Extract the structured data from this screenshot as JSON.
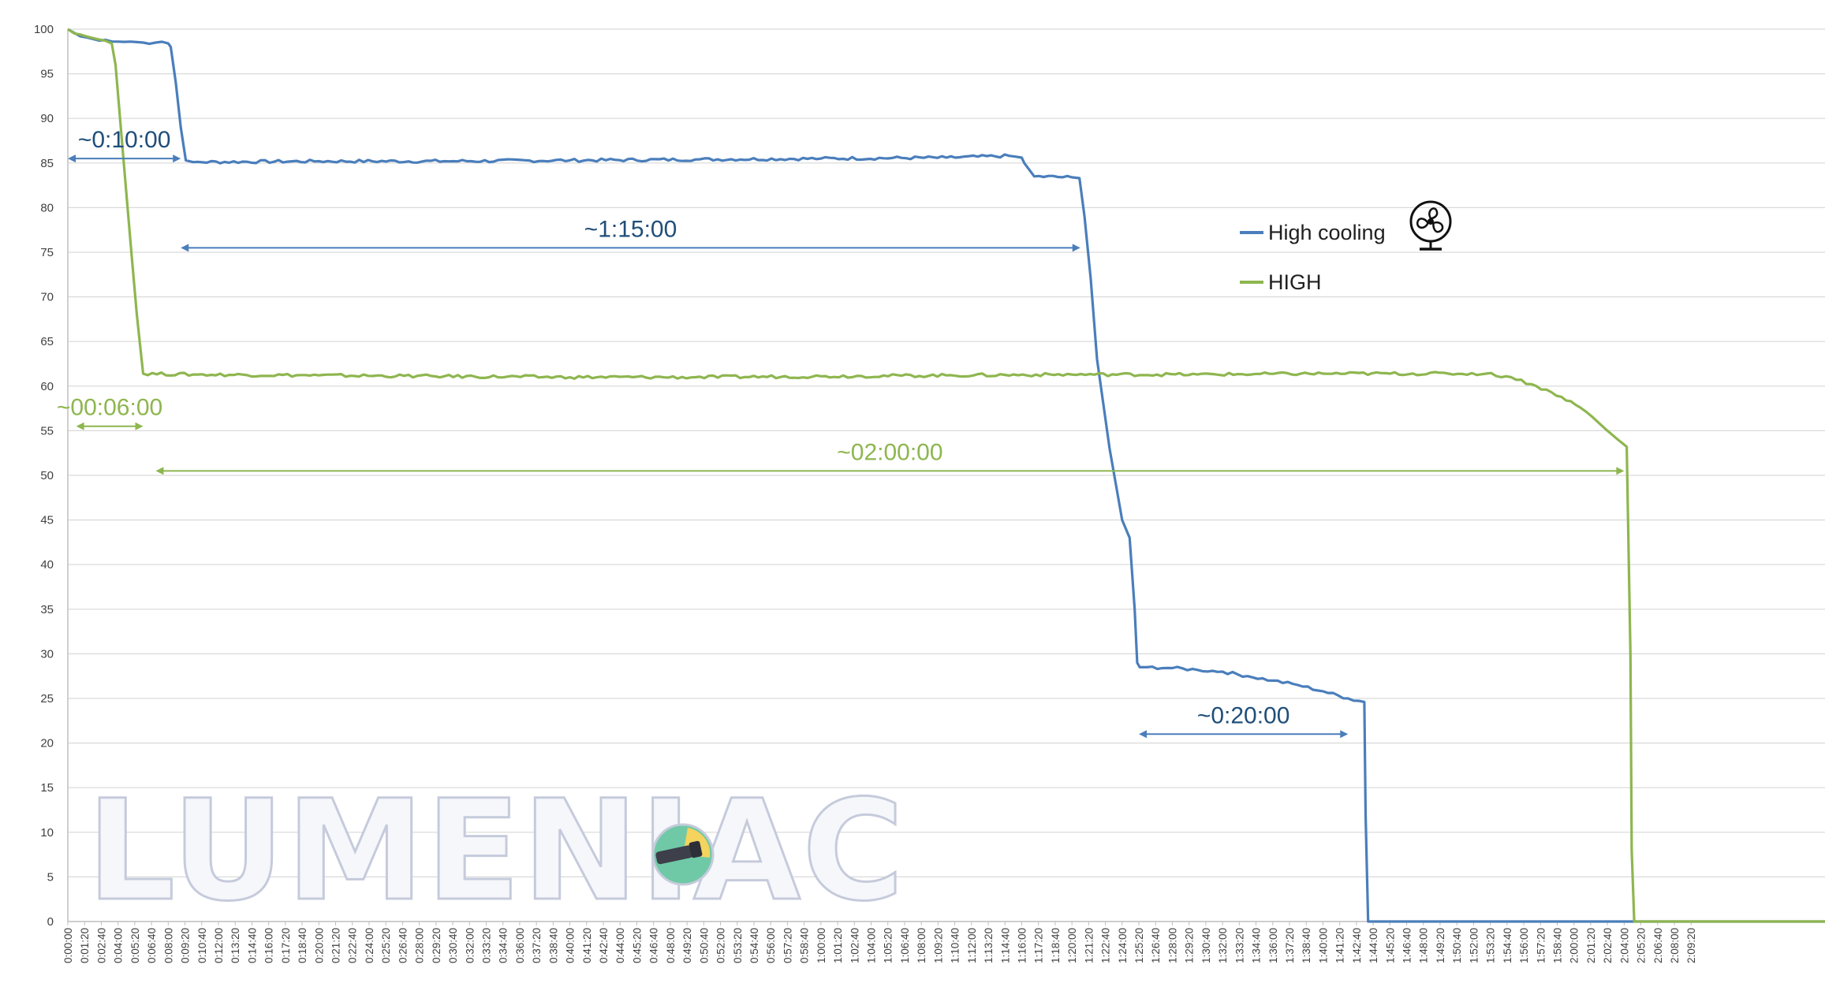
{
  "colors": {
    "high_cooling": "#4a7ebb",
    "high": "#8eb64f",
    "grid": "#d9d9d9",
    "axis": "#bfbfbf"
  },
  "watermark": {
    "text": "LUMENIAC",
    "icon": "flashlight-logo-icon"
  },
  "legend": {
    "items": [
      {
        "label": "High cooling",
        "color": "#4a7ebb",
        "icon": "fan-icon"
      },
      {
        "label": "HIGH",
        "color": "#8eb64f"
      }
    ]
  },
  "annotations": [
    {
      "text": "~0:10:00",
      "series": "High cooling",
      "x_from": "0:00:00",
      "x_to": "0:09:00",
      "y": 85.5
    },
    {
      "text": "~1:15:00",
      "series": "High cooling",
      "x_from": "0:09:00",
      "x_to": "1:20:40",
      "y": 75.5
    },
    {
      "text": "~00:06:00",
      "series": "HIGH",
      "x_from": "0:00:40",
      "x_to": "0:06:00",
      "y": 55.5
    },
    {
      "text": "~02:00:00",
      "series": "HIGH",
      "x_from": "0:07:00",
      "x_to": "2:04:00",
      "y": 50.5
    },
    {
      "text": "~0:20:00",
      "series": "High cooling",
      "x_from": "1:25:20",
      "x_to": "1:42:00",
      "y": 21
    }
  ],
  "chart_data": {
    "type": "line",
    "title": "",
    "xlabel": "",
    "ylabel": "",
    "ylim": [
      0,
      100
    ],
    "yticks": [
      0,
      5,
      10,
      15,
      20,
      25,
      30,
      35,
      40,
      45,
      50,
      55,
      60,
      65,
      70,
      75,
      80,
      85,
      90,
      95,
      100
    ],
    "xlim_minutes": [
      0,
      140
    ],
    "xtick_labels": [
      "0:00:00",
      "0:01:20",
      "0:02:40",
      "0:04:00",
      "0:05:20",
      "0:06:40",
      "0:08:00",
      "0:09:20",
      "0:10:40",
      "0:12:00",
      "0:13:20",
      "0:14:40",
      "0:16:00",
      "0:17:20",
      "0:18:40",
      "0:20:00",
      "0:21:20",
      "0:22:40",
      "0:24:00",
      "0:25:20",
      "0:26:40",
      "0:28:00",
      "0:29:20",
      "0:30:40",
      "0:32:00",
      "0:33:20",
      "0:34:40",
      "0:36:00",
      "0:37:20",
      "0:38:40",
      "0:40:00",
      "0:41:20",
      "0:42:40",
      "0:44:00",
      "0:45:20",
      "0:46:40",
      "0:48:00",
      "0:49:20",
      "0:50:40",
      "0:52:00",
      "0:53:20",
      "0:54:40",
      "0:56:00",
      "0:57:20",
      "0:58:40",
      "1:00:00",
      "1:01:20",
      "1:02:40",
      "1:04:00",
      "1:05:20",
      "1:06:40",
      "1:08:00",
      "1:09:20",
      "1:10:40",
      "1:12:00",
      "1:13:20",
      "1:14:40",
      "1:16:00",
      "1:17:20",
      "1:18:40",
      "1:20:00",
      "1:21:20",
      "1:22:40",
      "1:24:00",
      "1:25:20",
      "1:26:40",
      "1:28:00",
      "1:29:20",
      "1:30:40",
      "1:32:00",
      "1:33:20",
      "1:34:40",
      "1:36:00",
      "1:37:20",
      "1:38:40",
      "1:40:00",
      "1:41:20",
      "1:42:40",
      "1:44:00",
      "1:45:20",
      "1:46:40",
      "1:48:00",
      "1:49:20",
      "1:50:40",
      "1:52:00",
      "1:53:20",
      "1:54:40",
      "1:56:00",
      "1:57:20",
      "1:58:40",
      "2:00:00",
      "2:01:20",
      "2:02:40",
      "2:04:00",
      "2:05:20",
      "2:06:40",
      "2:08:00",
      "2:09:20"
    ],
    "x_units": "minutes",
    "grid": true,
    "legend_position": "right",
    "series": [
      {
        "name": "High cooling",
        "color": "#4a7ebb",
        "x": [
          0,
          1,
          2,
          3,
          4,
          5,
          6,
          7,
          8,
          8.2,
          8.6,
          9.0,
          9.4,
          10,
          20,
          30,
          40,
          50,
          60,
          70,
          75,
          76,
          76.2,
          77,
          80,
          80.6,
          81,
          81.5,
          82,
          83,
          84,
          84.6,
          85,
          85.2,
          85.4,
          86,
          88,
          90,
          92,
          94,
          96,
          98,
          100,
          102,
          103.3,
          103.4,
          103.6,
          110,
          120,
          130,
          140
        ],
        "y": [
          100,
          99.2,
          98.9,
          98.8,
          98.6,
          98.6,
          98.5,
          98.5,
          98.4,
          98.0,
          94,
          89,
          85.3,
          85.1,
          85.2,
          85.2,
          85.3,
          85.4,
          85.5,
          85.6,
          85.8,
          85.6,
          85.0,
          83.5,
          83.4,
          83.3,
          79,
          72,
          63,
          53,
          45,
          43,
          35,
          29,
          28.5,
          28.5,
          28.4,
          28.2,
          28.0,
          27.5,
          27.0,
          26.5,
          25.8,
          25.0,
          24.6,
          12,
          0,
          0,
          0,
          0,
          0
        ],
        "note_points": "approximate"
      },
      {
        "name": "HIGH",
        "color": "#8eb64f",
        "x": [
          0,
          1,
          2,
          3,
          3.5,
          3.8,
          4.4,
          5.0,
          5.5,
          5.8,
          6.0,
          10,
          20,
          30,
          40,
          50,
          60,
          70,
          80,
          90,
          100,
          110,
          113,
          115,
          117,
          119,
          120.5,
          121.5,
          122.5,
          123.5,
          124.2,
          124.5,
          124.6,
          124.8,
          130,
          140
        ],
        "y": [
          100,
          99.4,
          99.0,
          98.7,
          98.4,
          96,
          86,
          76,
          68,
          64,
          61.4,
          61.3,
          61.2,
          61.1,
          61.0,
          61.0,
          61.1,
          61.2,
          61.3,
          61.3,
          61.4,
          61.4,
          61.4,
          61.0,
          60.0,
          58.8,
          57.6,
          56.5,
          55.2,
          54.0,
          53.2,
          30,
          8,
          0,
          0,
          0
        ]
      }
    ]
  }
}
